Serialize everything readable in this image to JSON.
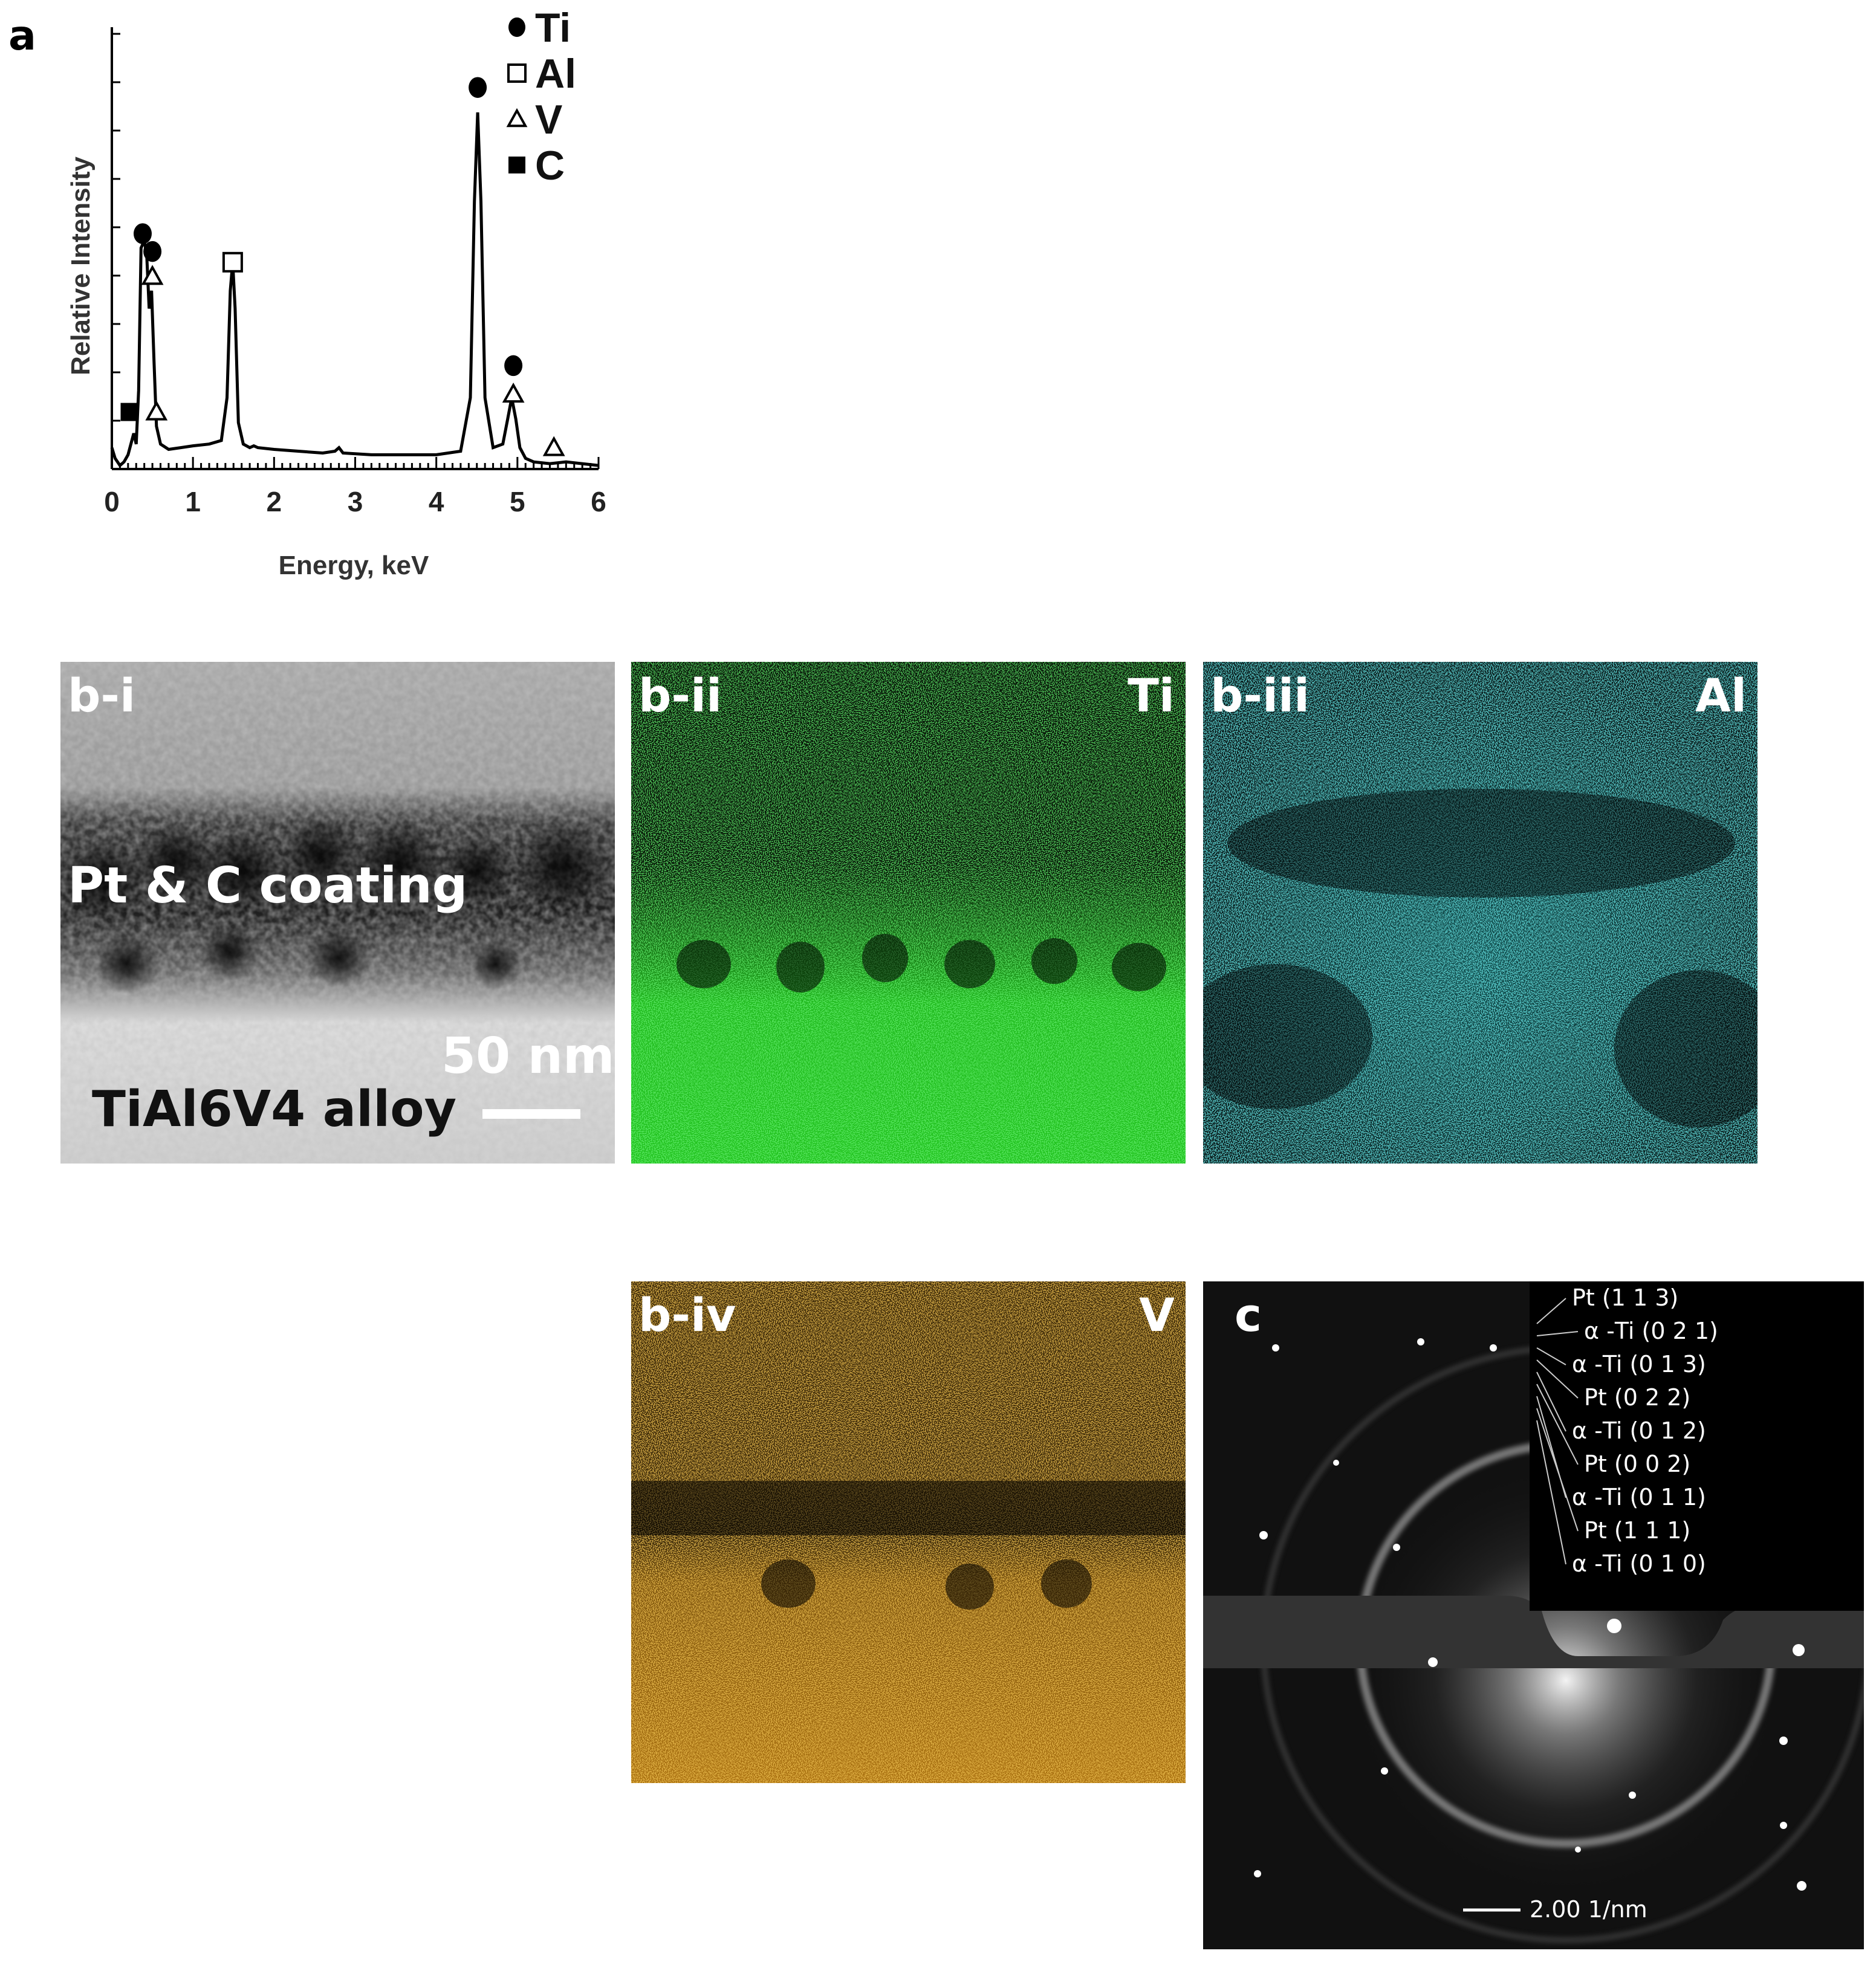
{
  "panel_a": {
    "letter": "a"
  },
  "chart_data": {
    "type": "line",
    "title": "",
    "xlabel": "Energy, keV",
    "ylabel": "Relative Intensity",
    "xlim": [
      0,
      6
    ],
    "xticks": [
      "0",
      "1",
      "2",
      "3",
      "4",
      "5",
      "6"
    ],
    "grid": false,
    "legend": {
      "placement": "top-right",
      "entries": [
        {
          "name": "Ti",
          "marker": "filled-circle"
        },
        {
          "name": "Al",
          "marker": "open-square"
        },
        {
          "name": "V",
          "marker": "open-triangle"
        },
        {
          "name": "C",
          "marker": "filled-square"
        }
      ]
    },
    "series": [
      {
        "x": [
          0.0,
          0.04,
          0.1,
          0.15,
          0.2,
          0.27,
          0.3,
          0.33,
          0.36,
          0.4,
          0.43,
          0.46,
          0.49,
          0.52,
          0.55,
          0.6,
          0.7,
          0.85,
          1.0,
          1.2,
          1.35,
          1.42,
          1.46,
          1.49,
          1.52,
          1.56,
          1.62,
          1.7,
          1.75,
          1.8,
          2.0,
          2.3,
          2.6,
          2.75,
          2.8,
          2.85,
          3.2,
          3.6,
          4.0,
          4.3,
          4.42,
          4.47,
          4.51,
          4.55,
          4.6,
          4.7,
          4.82,
          4.88,
          4.93,
          4.98,
          5.03,
          5.1,
          5.2,
          5.4,
          5.6,
          6.0
        ],
        "y": [
          0.06,
          0.03,
          0.01,
          0.02,
          0.04,
          0.1,
          0.07,
          0.22,
          0.62,
          0.64,
          0.6,
          0.45,
          0.5,
          0.3,
          0.12,
          0.07,
          0.055,
          0.06,
          0.065,
          0.07,
          0.08,
          0.2,
          0.5,
          0.58,
          0.45,
          0.13,
          0.07,
          0.06,
          0.065,
          0.06,
          0.055,
          0.05,
          0.045,
          0.05,
          0.06,
          0.045,
          0.04,
          0.04,
          0.04,
          0.05,
          0.2,
          0.75,
          1.0,
          0.75,
          0.2,
          0.06,
          0.07,
          0.14,
          0.2,
          0.14,
          0.06,
          0.03,
          0.02,
          0.015,
          0.02,
          0.01
        ]
      }
    ],
    "peak_markers": [
      {
        "element": "C",
        "marker": "filled-square",
        "x": 0.22,
        "y": 0.16
      },
      {
        "element": "Ti",
        "marker": "filled-circle",
        "x": 0.38,
        "y": 0.66
      },
      {
        "element": "Ti",
        "marker": "filled-circle",
        "x": 0.5,
        "y": 0.61
      },
      {
        "element": "V",
        "marker": "open-triangle",
        "x": 0.5,
        "y": 0.54
      },
      {
        "element": "V",
        "marker": "open-triangle",
        "x": 0.55,
        "y": 0.16
      },
      {
        "element": "Al",
        "marker": "open-square",
        "x": 1.49,
        "y": 0.58
      },
      {
        "element": "Ti",
        "marker": "filled-circle",
        "x": 4.51,
        "y": 1.07
      },
      {
        "element": "Ti",
        "marker": "filled-circle",
        "x": 4.95,
        "y": 0.29
      },
      {
        "element": "V",
        "marker": "open-triangle",
        "x": 4.95,
        "y": 0.21
      },
      {
        "element": "V",
        "marker": "open-triangle",
        "x": 5.45,
        "y": 0.06
      }
    ]
  },
  "panel_b_i": {
    "letter": "b-i",
    "label_coating": "Pt & C coating",
    "label_alloy": "TiAl6V4 alloy",
    "scalebar": "50 nm"
  },
  "panel_b_ii": {
    "letter": "b-ii",
    "element": "Ti",
    "color": "#2ecc2a"
  },
  "panel_b_iii": {
    "letter": "b-iii",
    "element": "Al",
    "color": "#1fa6a6"
  },
  "panel_b_iv": {
    "letter": "b-iv",
    "element": "V",
    "color": "#d48a12"
  },
  "panel_c": {
    "letter": "c",
    "scalebar": "2.00 1/nm",
    "ring_labels": [
      "Pt (1 1 3)",
      "α -Ti (0 2 1)",
      "α -Ti (0 1 3)",
      "Pt (0 2 2)",
      "α -Ti (0 1 2)",
      "Pt (0 0 2)",
      "α -Ti (0 1 1)",
      "Pt (1 1 1)",
      "α -Ti (0 1 0)"
    ]
  }
}
